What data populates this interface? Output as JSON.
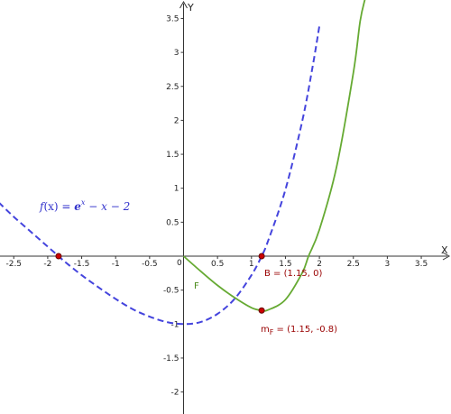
{
  "chart_data": {
    "type": "line",
    "axes": {
      "x_name": "X",
      "y_name": "Y",
      "xlim": [
        -2.72,
        3.89
      ],
      "ylim": [
        -2.31,
        3.78
      ],
      "x_ticks": [
        -2.5,
        -2,
        -1.5,
        -1,
        -0.5,
        0,
        0.5,
        1,
        1.5,
        2,
        2.5,
        3,
        3.5
      ],
      "x_tick_labels": [
        "-2.5",
        "-2",
        "-1.5",
        "-1",
        "-0.5",
        "0",
        "0.5",
        "1",
        "1.5",
        "2",
        "2.5",
        "3",
        "3.5"
      ],
      "y_ticks": [
        3.5,
        3,
        2.5,
        2,
        1.5,
        1,
        0.5,
        -0.5,
        -1,
        -1.5,
        -2
      ],
      "y_tick_labels": [
        "3.5",
        "3",
        "2.5",
        "2",
        "1.5",
        "1",
        "0.5",
        "-0.5",
        "-1",
        "-1.5",
        "-2"
      ],
      "grid": false
    },
    "series": [
      {
        "name": "f(x) = e^x − x − 2",
        "style": "dashed",
        "color": "#4444dd",
        "x": [
          -2.72,
          -2.5,
          -2.25,
          -2.0,
          -1.84,
          -1.75,
          -1.5,
          -1.25,
          -1.0,
          -0.75,
          -0.5,
          -0.25,
          0.0,
          0.25,
          0.5,
          0.75,
          1.0,
          1.15,
          1.25,
          1.5,
          1.75,
          1.9,
          2.0
        ],
        "y": [
          0.79,
          0.58,
          0.36,
          0.14,
          0.0,
          -0.08,
          -0.28,
          -0.46,
          -0.63,
          -0.78,
          -0.89,
          -0.97,
          -1.0,
          -0.97,
          -0.85,
          -0.63,
          -0.28,
          0.0,
          0.24,
          0.98,
          2.0,
          2.79,
          3.39
        ]
      },
      {
        "name": "F",
        "style": "solid",
        "color": "#66aa33",
        "x": [
          0.0,
          0.25,
          0.5,
          0.75,
          1.0,
          1.15,
          1.25,
          1.5,
          1.75,
          1.84,
          2.0,
          2.25,
          2.5,
          2.6,
          2.67
        ],
        "y": [
          0.0,
          -0.22,
          -0.43,
          -0.61,
          -0.76,
          -0.8,
          -0.79,
          -0.64,
          -0.24,
          0.0,
          0.39,
          1.3,
          2.7,
          3.46,
          3.78
        ]
      }
    ],
    "points": [
      {
        "label": "B = (1.15, 0)",
        "x": 1.15,
        "y": 0.0
      },
      {
        "label": "m_F = (1.15, -0.8)",
        "x": 1.15,
        "y": -0.8
      },
      {
        "label": "",
        "x": -1.84,
        "y": 0.0
      }
    ],
    "annotations": {
      "function_label": "f(x) = e^x − x − 2",
      "curve_label": "F"
    }
  },
  "labels": {
    "fx_f": "f",
    "fx_lp": "(x) = ",
    "fx_e": "e",
    "fx_exp": "x",
    "fx_rest": " − x − 2",
    "point_b": "B = (1.15, 0)",
    "point_m_main": "m",
    "point_m_sub": "F",
    "point_m_rest": " = (1.15, -0.8)",
    "curve_f": "F",
    "x_axis": "X",
    "y_axis": "Y",
    "origin": "0"
  },
  "colors": {
    "dashed_curve": "#4444dd",
    "solid_curve": "#66aa33",
    "point_fill": "#cc0000",
    "point_stroke": "#660000",
    "point_label": "#990000",
    "curve_label": "#4a8a1a",
    "axis": "#333333"
  }
}
